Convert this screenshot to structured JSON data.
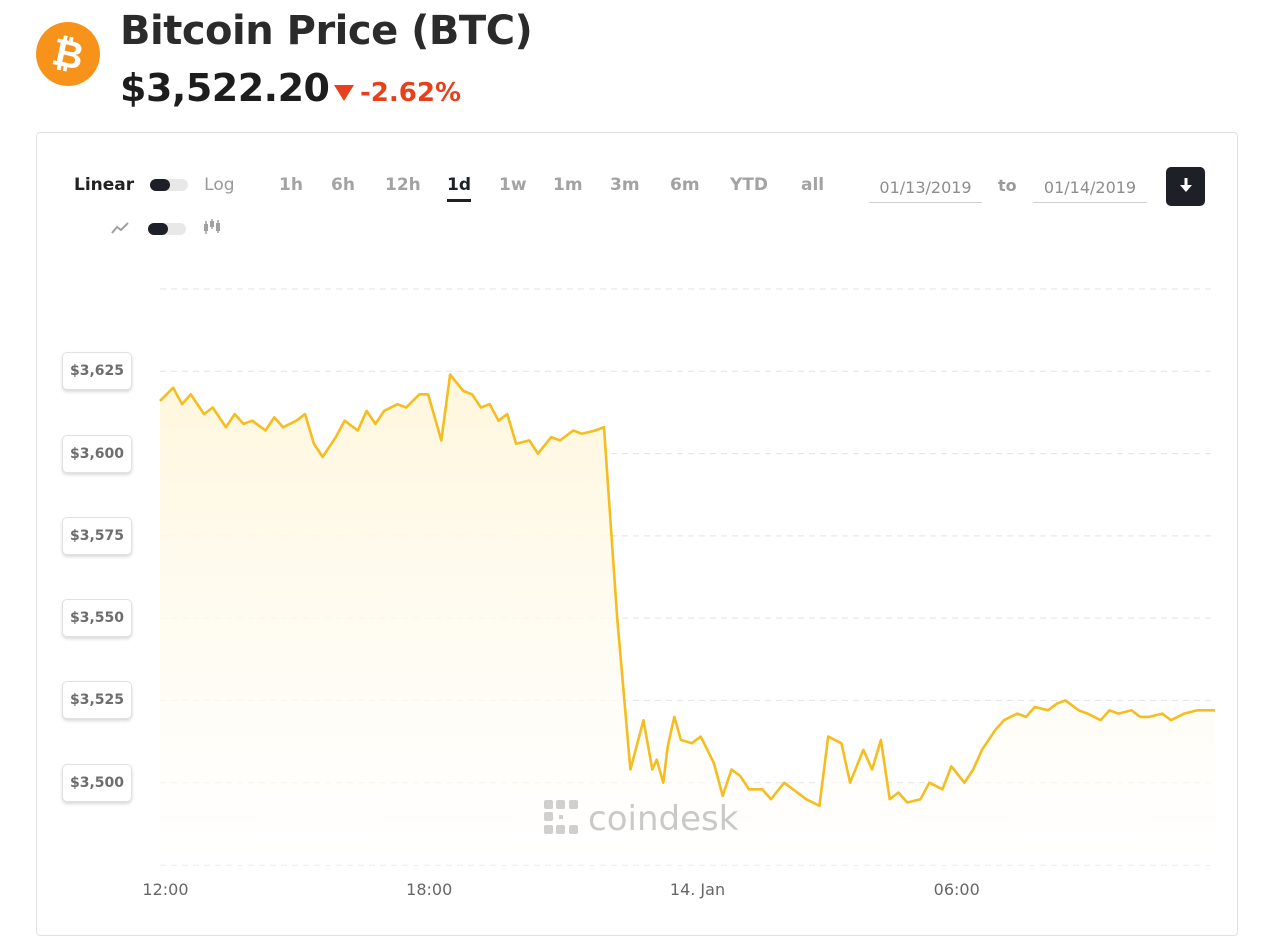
{
  "header": {
    "logo_symbol": "₿",
    "title": "Bitcoin Price (BTC)",
    "price": "$3,522.20",
    "change": "-2.62%",
    "change_direction": "down",
    "change_color": "#e8401c",
    "brand_color": "#f7931a"
  },
  "controls": {
    "scale_linear_label": "Linear",
    "scale_log_label": "Log",
    "scale_selected": "Linear",
    "chart_type_selected": "line",
    "line_icon": "line-chart-icon",
    "candle_icon": "candlestick-icon",
    "ranges": [
      "1h",
      "6h",
      "12h",
      "1d",
      "1w",
      "1m",
      "3m",
      "6m",
      "YTD",
      "all"
    ],
    "active_range": "1d",
    "date_from": "01/13/2019",
    "date_to_label": "to",
    "date_to": "01/14/2019",
    "download_icon": "download-icon"
  },
  "watermark": "coindesk",
  "chart_data": {
    "type": "area",
    "xlabel": "",
    "ylabel": "",
    "y_tick_labels": [
      "$3,500",
      "$3,525",
      "$3,550",
      "$3,575",
      "$3,600",
      "$3,625"
    ],
    "y_ticks": [
      3500,
      3525,
      3550,
      3575,
      3600,
      3625
    ],
    "ylim": [
      3475,
      3650
    ],
    "x_tick_labels": [
      "12:00",
      "18:00",
      "14. Jan",
      "06:00"
    ],
    "x_ticks": [
      12,
      18,
      24,
      30
    ],
    "xlim": [
      11.9,
      35.9
    ],
    "grid": true,
    "line_color": "#f5bd1f",
    "fill_color": "#fff6dc",
    "series": [
      {
        "x": [
          11.9,
          12.2,
          12.4,
          12.6,
          12.9,
          13.1,
          13.4,
          13.6,
          13.8,
          14.0,
          14.3,
          14.5,
          14.7,
          15.0,
          15.2,
          15.4,
          15.6,
          15.9,
          16.1,
          16.4,
          16.6,
          16.8,
          17.0,
          17.3,
          17.5,
          17.8,
          18.0,
          18.3,
          18.5,
          18.8,
          19.0,
          19.2,
          19.4,
          19.6,
          19.8,
          20.0,
          20.3,
          20.5,
          20.8,
          21.0,
          21.3,
          21.5,
          21.8,
          22.0,
          22.3,
          22.6,
          22.9,
          23.1,
          23.2,
          23.35,
          23.45,
          23.6,
          23.75,
          24.0,
          24.2,
          24.5,
          24.7,
          24.9,
          25.1,
          25.3,
          25.6,
          25.8,
          26.1,
          26.3,
          26.6,
          26.9,
          27.1,
          27.4,
          27.6,
          27.9,
          28.1,
          28.3,
          28.5,
          28.7,
          28.9,
          29.2,
          29.4,
          29.7,
          29.9,
          30.2,
          30.4,
          30.6,
          30.9,
          31.1,
          31.4,
          31.6,
          31.8,
          32.1,
          32.3,
          32.5,
          32.8,
          33.0,
          33.3,
          33.5,
          33.7,
          34.0,
          34.2,
          34.4,
          34.7,
          34.9,
          35.2,
          35.5,
          35.9
        ],
        "y": [
          3616,
          3620,
          3615,
          3618,
          3612,
          3614,
          3608,
          3612,
          3609,
          3610,
          3607,
          3611,
          3608,
          3610,
          3612,
          3603,
          3599,
          3605,
          3610,
          3607,
          3613,
          3609,
          3613,
          3615,
          3614,
          3618,
          3618,
          3604,
          3624,
          3619,
          3618,
          3614,
          3615,
          3610,
          3612,
          3603,
          3604,
          3600,
          3605,
          3604,
          3607,
          3606,
          3607,
          3608,
          3550,
          3504,
          3519,
          3504,
          3507,
          3500,
          3511,
          3520,
          3513,
          3512,
          3514,
          3506,
          3496,
          3504,
          3502,
          3498,
          3498,
          3495,
          3500,
          3498,
          3495,
          3493,
          3514,
          3512,
          3500,
          3510,
          3504,
          3513,
          3495,
          3497,
          3494,
          3495,
          3500,
          3498,
          3505,
          3500,
          3504,
          3510,
          3516,
          3519,
          3521,
          3520,
          3523,
          3522,
          3524,
          3525,
          3522,
          3521,
          3519,
          3522,
          3521,
          3522,
          3520,
          3520,
          3521,
          3519,
          3521,
          3522,
          3522
        ]
      }
    ]
  }
}
